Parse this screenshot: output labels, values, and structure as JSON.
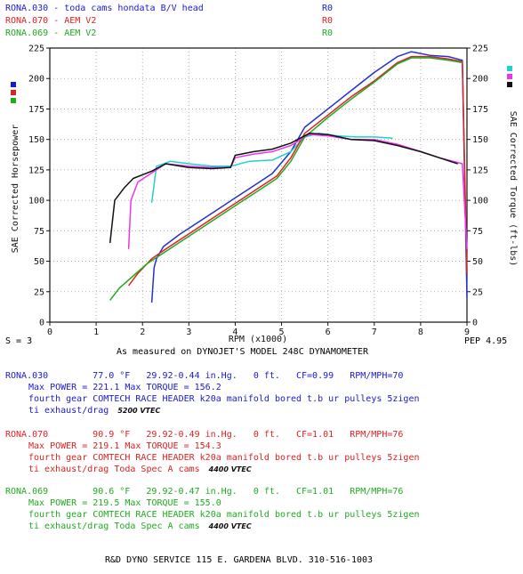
{
  "legend": [
    {
      "label": "RONA.030 - toda cams hondata B/V head",
      "code": "R0",
      "color": "#1a1acc"
    },
    {
      "label": "RONA.070 - AEM V2",
      "code": "R0",
      "color": "#dd2222"
    },
    {
      "label": "RONA.069 - AEM V2",
      "code": "R0",
      "color": "#22aa22"
    }
  ],
  "chart_data": {
    "type": "line",
    "xlabel": "RPM (x1000)",
    "ylabel_left": "SAE Corrected Horsepower",
    "ylabel_right": "SAE Corrected Torque (ft-lbs)",
    "xlim": [
      0,
      9
    ],
    "ylim": [
      0,
      225
    ],
    "x_ticks": [
      0,
      1,
      2,
      3,
      4,
      5,
      6,
      7,
      8,
      9
    ],
    "y_ticks": [
      0,
      25,
      50,
      75,
      100,
      125,
      150,
      175,
      200,
      225
    ],
    "grid": true,
    "series": [
      {
        "name": "RONA.030",
        "kind": "horsepower",
        "color": "#2233cc",
        "points": [
          [
            2.2,
            16
          ],
          [
            2.25,
            45
          ],
          [
            2.3,
            52
          ],
          [
            2.45,
            62
          ],
          [
            2.8,
            72
          ],
          [
            3.2,
            82
          ],
          [
            3.6,
            92
          ],
          [
            4.0,
            102
          ],
          [
            4.4,
            112
          ],
          [
            4.8,
            122
          ],
          [
            5.2,
            140
          ],
          [
            5.5,
            160
          ],
          [
            6.0,
            175
          ],
          [
            6.5,
            190
          ],
          [
            7.0,
            205
          ],
          [
            7.5,
            218
          ],
          [
            7.8,
            222
          ],
          [
            8.2,
            219
          ],
          [
            8.6,
            218
          ],
          [
            8.9,
            215
          ],
          [
            9.0,
            20
          ]
        ]
      },
      {
        "name": "RONA.030",
        "kind": "torque",
        "color": "#20d0d0",
        "points": [
          [
            2.2,
            98
          ],
          [
            2.3,
            128
          ],
          [
            2.6,
            132
          ],
          [
            3.0,
            130
          ],
          [
            3.5,
            128
          ],
          [
            3.9,
            128
          ],
          [
            4.3,
            132
          ],
          [
            4.8,
            133
          ],
          [
            5.2,
            140
          ],
          [
            5.5,
            152
          ],
          [
            5.8,
            155
          ],
          [
            6.2,
            153
          ],
          [
            6.6,
            152
          ],
          [
            7.0,
            152
          ],
          [
            7.4,
            151
          ]
        ]
      },
      {
        "name": "RONA.070",
        "kind": "horsepower",
        "color": "#dd2222",
        "points": [
          [
            1.7,
            30
          ],
          [
            1.9,
            40
          ],
          [
            2.2,
            52
          ],
          [
            2.5,
            60
          ],
          [
            2.9,
            70
          ],
          [
            3.3,
            80
          ],
          [
            3.7,
            90
          ],
          [
            4.1,
            100
          ],
          [
            4.5,
            110
          ],
          [
            4.9,
            120
          ],
          [
            5.2,
            135
          ],
          [
            5.5,
            155
          ],
          [
            6.0,
            170
          ],
          [
            6.5,
            185
          ],
          [
            7.0,
            198
          ],
          [
            7.5,
            213
          ],
          [
            7.8,
            218
          ],
          [
            8.2,
            218
          ],
          [
            8.6,
            216
          ],
          [
            8.9,
            214
          ],
          [
            9.0,
            40
          ]
        ]
      },
      {
        "name": "RONA.070",
        "kind": "torque",
        "color": "#ee33ee",
        "points": [
          [
            1.7,
            60
          ],
          [
            1.75,
            100
          ],
          [
            1.9,
            115
          ],
          [
            2.1,
            120
          ],
          [
            2.5,
            130
          ],
          [
            3.0,
            128
          ],
          [
            3.5,
            127
          ],
          [
            3.9,
            127
          ],
          [
            4.0,
            135
          ],
          [
            4.4,
            138
          ],
          [
            4.8,
            140
          ],
          [
            5.2,
            145
          ],
          [
            5.6,
            154
          ],
          [
            6.0,
            153
          ],
          [
            6.5,
            150
          ],
          [
            7.0,
            150
          ],
          [
            7.5,
            146
          ],
          [
            8.0,
            140
          ],
          [
            8.4,
            135
          ],
          [
            8.9,
            130
          ],
          [
            9.0,
            60
          ]
        ]
      },
      {
        "name": "RONA.069",
        "kind": "horsepower",
        "color": "#22aa22",
        "points": [
          [
            1.3,
            18
          ],
          [
            1.5,
            28
          ],
          [
            1.8,
            38
          ],
          [
            2.1,
            48
          ],
          [
            2.5,
            58
          ],
          [
            2.9,
            68
          ],
          [
            3.3,
            78
          ],
          [
            3.7,
            88
          ],
          [
            4.1,
            98
          ],
          [
            4.5,
            108
          ],
          [
            4.9,
            118
          ],
          [
            5.2,
            132
          ],
          [
            5.5,
            152
          ],
          [
            6.0,
            168
          ],
          [
            6.5,
            183
          ],
          [
            7.0,
            197
          ],
          [
            7.5,
            212
          ],
          [
            7.8,
            217
          ],
          [
            8.2,
            217
          ],
          [
            8.6,
            215
          ],
          [
            8.9,
            213
          ]
        ]
      },
      {
        "name": "RONA.069",
        "kind": "torque",
        "color": "#111111",
        "points": [
          [
            1.3,
            65
          ],
          [
            1.4,
            100
          ],
          [
            1.6,
            110
          ],
          [
            1.8,
            118
          ],
          [
            2.2,
            124
          ],
          [
            2.5,
            130
          ],
          [
            3.0,
            127
          ],
          [
            3.5,
            126
          ],
          [
            3.9,
            127
          ],
          [
            4.0,
            137
          ],
          [
            4.4,
            140
          ],
          [
            4.8,
            142
          ],
          [
            5.2,
            147
          ],
          [
            5.6,
            155
          ],
          [
            6.0,
            154
          ],
          [
            6.5,
            150
          ],
          [
            7.0,
            149
          ],
          [
            7.5,
            145
          ],
          [
            8.0,
            140
          ],
          [
            8.4,
            135
          ],
          [
            8.8,
            130
          ]
        ]
      }
    ]
  },
  "footer": {
    "s_value": "S = 3",
    "dyno_line": "As measured on DYNOJET'S MODEL 248C DYNAMOMETER",
    "pep": "PEP 4.95"
  },
  "runs": [
    {
      "name": "RONA.030",
      "color": "#1a1acc",
      "temp": "77.0 °F",
      "baro": "29.92-0.44 in.Hg.",
      "alt": "0 ft.",
      "cf": "CF=0.99",
      "rpm_mph": "RPM/MPH=70",
      "power": "Max POWER = 221.1   Max TORQUE = 156.2",
      "desc1": "fourth gear COMTECH RACE HEADER k20a manifold bored t.b ur pulleys 5zigen",
      "desc2": "ti exhaust/drag",
      "note": "5200 VTEC"
    },
    {
      "name": "RONA.070",
      "color": "#dd2222",
      "temp": "90.9 °F",
      "baro": "29.92-0.49 in.Hg.",
      "alt": "0 ft.",
      "cf": "CF=1.01",
      "rpm_mph": "RPM/MPH=76",
      "power": "Max POWER = 219.1   Max TORQUE = 154.3",
      "desc1": "fourth gear COMTECH RACE HEADER k20a manifold bored t.b ur pulleys 5zigen",
      "desc2": "ti exhaust/drag Toda Spec A cams",
      "note": "4400 VTEC"
    },
    {
      "name": "RONA.069",
      "color": "#22aa22",
      "temp": "90.6 °F",
      "baro": "29.92-0.47 in.Hg.",
      "alt": "0 ft.",
      "cf": "CF=1.01",
      "rpm_mph": "RPM/MPH=76",
      "power": "Max POWER = 219.5   Max TORQUE = 155.0",
      "desc1": "fourth gear COMTECH RACE HEADER k20a manifold bored t.b ur pulleys 5zigen",
      "desc2": "ti exhaust/drag Toda Spec A cams",
      "note": "4400 VTEC"
    }
  ],
  "shop": "R&D DYNO SERVICE 115 E. GARDENA BLVD. 310-516-1003"
}
